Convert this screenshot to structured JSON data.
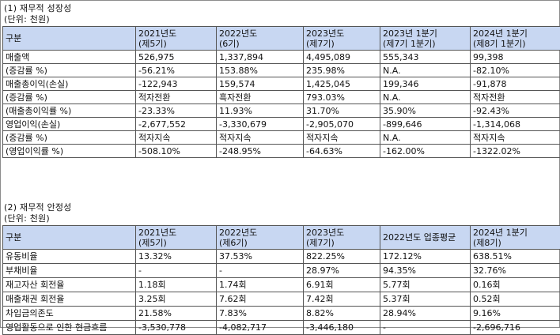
{
  "section1": {
    "title": "(1) 재무적 성장성",
    "unit": "(단위: 천원)",
    "header": {
      "label": "구분",
      "columns": [
        {
          "line1": "2021년도",
          "line2": "(제5기)"
        },
        {
          "line1": "2022년도",
          "line2": "(6기)"
        },
        {
          "line1": "2023년도",
          "line2": "(제7기)"
        },
        {
          "line1": "2023년 1분기",
          "line2": "(제7기 1분기)"
        },
        {
          "line1": "2024년 1분기",
          "line2": "(제8기 1분기)"
        }
      ]
    },
    "rows": [
      {
        "label": "매출액",
        "values": [
          "526,975",
          "1,337,894",
          "4,495,089",
          "555,343",
          "99,398"
        ]
      },
      {
        "label": "(증감률 %)",
        "values": [
          "-56.21%",
          "153.88%",
          "235.98%",
          "N.A.",
          "-82.10%"
        ]
      },
      {
        "label": "매출총이익(손실)",
        "values": [
          "-122,943",
          "159,574",
          "1,425,045",
          "199,346",
          "-91,878"
        ]
      },
      {
        "label": "(증감률 %)",
        "values": [
          "적자전환",
          "흑자전환",
          "793.03%",
          "N.A.",
          "적자전환"
        ]
      },
      {
        "label": "(매출총이익률 %)",
        "values": [
          "-23.33%",
          "11.93%",
          "31.70%",
          "35.90%",
          "-92.43%"
        ]
      },
      {
        "label": "영업이익(손실)",
        "values": [
          "-2,677,552",
          "-3,330,679",
          "-2,905,070",
          "-899,646",
          "-1,314,068"
        ]
      },
      {
        "label": "(증감률 %)",
        "values": [
          "적자지속",
          "적자지속",
          "적자지속",
          "N.A.",
          "적자지속"
        ]
      },
      {
        "label": "(영업이익률 %)",
        "values": [
          "-508.10%",
          "-248.95%",
          "-64.63%",
          "-162.00%",
          "-1322.02%"
        ]
      }
    ]
  },
  "section2": {
    "title": "(2) 재무적 안정성",
    "unit": "(단위: 천원)",
    "header": {
      "label": "구분",
      "columns": [
        {
          "line1": "2021년도",
          "line2": "(제5기)"
        },
        {
          "line1": "2022년도",
          "line2": "(제6기)"
        },
        {
          "line1": "2023년도",
          "line2": "(제7기)"
        },
        {
          "line1": "2022년도 업종평균",
          "line2": ""
        },
        {
          "line1": "2024년 1분기",
          "line2": "(제8기)"
        }
      ]
    },
    "rows": [
      {
        "label": "유동비율",
        "values": [
          "13.32%",
          "37.53%",
          "822.25%",
          "172.12%",
          "638.51%"
        ]
      },
      {
        "label": "부채비율",
        "values": [
          "-",
          "-",
          "28.97%",
          "94.35%",
          "32.76%"
        ]
      },
      {
        "label": "재고자산 회전율",
        "values": [
          "1.18회",
          "1.74회",
          "6.91회",
          "5.77회",
          "0.16회"
        ]
      },
      {
        "label": "매출채권 회전율",
        "values": [
          "3.25회",
          "7.62회",
          "7.42회",
          "5.37회",
          "0.52회"
        ]
      },
      {
        "label": "차입금의존도",
        "values": [
          "21.58%",
          "7.83%",
          "8.82%",
          "28.94%",
          "9.16%"
        ]
      },
      {
        "label": "영업활동으로 인한 현금흐름",
        "values": [
          "-3,530,778",
          "-4,082,717",
          "-3,446,180",
          "-",
          "-2,696,716"
        ]
      }
    ]
  }
}
